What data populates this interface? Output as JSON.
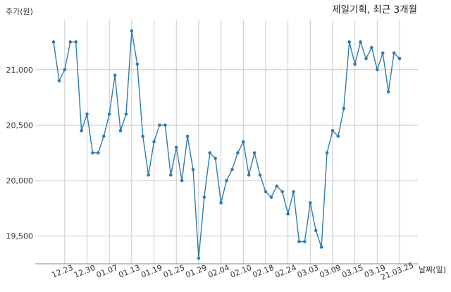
{
  "chart_data": {
    "type": "line",
    "title": "제일기획, 최근 3개월",
    "ylabel": "주가(원)",
    "xlabel": "날짜(일)",
    "ylim": [
      19250,
      21450
    ],
    "yticks": [
      19500,
      20000,
      20500,
      21000
    ],
    "ytick_labels": [
      "19,500",
      "20,000",
      "20,500",
      "21,000"
    ],
    "xtick_labels": [
      "12.23",
      "12.30",
      "01.07",
      "01.13",
      "01.19",
      "01.25",
      "01.29",
      "02.04",
      "02.10",
      "02.18",
      "02.24",
      "03.03",
      "03.09",
      "03.15",
      "03.19",
      "21.03.25"
    ],
    "xtick_indices": [
      2,
      6,
      10,
      14,
      18,
      22,
      26,
      30,
      34,
      38,
      42,
      46,
      50,
      54,
      58,
      62
    ],
    "grid": true,
    "color": "#2e7bb0",
    "series": [
      {
        "values": [
          21250,
          20900,
          21000,
          21250,
          21250,
          20450,
          20600,
          20250,
          20250,
          20400,
          20600,
          20950,
          20450,
          20600,
          21350,
          21050,
          20400,
          20050,
          20350,
          20500,
          20500,
          20050,
          20300,
          20000,
          20400,
          20100,
          19300,
          19850,
          20250,
          20200,
          19800,
          20000,
          20100,
          20250,
          20350,
          20050,
          20250,
          20050,
          19900,
          19850,
          19950,
          19900,
          19700,
          19900,
          19450,
          19450,
          19800,
          19550,
          19400,
          20250,
          20450,
          20400,
          20650,
          21250,
          21050,
          21250,
          21100,
          21200,
          21000,
          21150,
          20800,
          21150,
          21100
        ]
      }
    ]
  }
}
